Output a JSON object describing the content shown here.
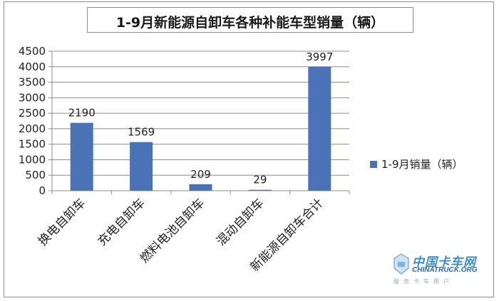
{
  "chart_data": {
    "type": "bar",
    "title": "1-9月新能源自卸车各种补能车型销量（辆）",
    "categories": [
      "换电自卸车",
      "充电自卸车",
      "燃料电池自卸车",
      "混动自卸车",
      "新能源自卸车合计"
    ],
    "series": [
      {
        "name": "1-9月销量（辆）",
        "values": [
          2190,
          1569,
          209,
          29,
          3997
        ]
      }
    ],
    "data_labels": [
      "2190",
      "1569",
      "209",
      "29",
      "3997"
    ],
    "yticks": [
      "0",
      "500",
      "1000",
      "1500",
      "2000",
      "2500",
      "3000",
      "3500",
      "4000",
      "4500"
    ],
    "ylim": [
      0,
      4500
    ],
    "xlabel": "",
    "ylabel": "",
    "grid": true,
    "legend_position": "right",
    "colors": {
      "bar": "#4a72b7",
      "grid": "#8c8c8c",
      "axis": "#8c8c8c"
    }
  },
  "watermark": {
    "name_cn": "中国卡车网",
    "name_en": "CHINATRUCK.ORG",
    "tagline": "服务卡车用户"
  }
}
